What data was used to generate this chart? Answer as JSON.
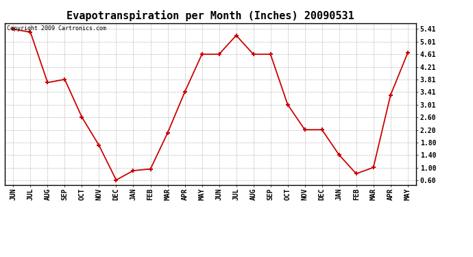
{
  "title": "Evapotranspiration per Month (Inches) 20090531",
  "copyright": "Copyright 2009 Cartronics.com",
  "months": [
    "JUN",
    "JUL",
    "AUG",
    "SEP",
    "OCT",
    "NOV",
    "DEC",
    "JAN",
    "FEB",
    "MAR",
    "APR",
    "MAY",
    "JUN",
    "JUL",
    "AUG",
    "SEP",
    "OCT",
    "NOV",
    "DEC",
    "JAN",
    "FEB",
    "MAR",
    "APR",
    "MAY"
  ],
  "values": [
    5.41,
    5.31,
    3.71,
    3.81,
    2.61,
    1.71,
    0.61,
    0.91,
    0.96,
    2.11,
    3.41,
    4.61,
    4.61,
    5.21,
    4.61,
    4.61,
    3.01,
    2.21,
    2.21,
    1.41,
    0.81,
    1.01,
    3.31,
    4.65
  ],
  "line_color": "#cc0000",
  "marker": "+",
  "marker_size": 5,
  "marker_linewidth": 1.5,
  "line_width": 1.3,
  "yticks": [
    0.6,
    1.0,
    1.4,
    1.8,
    2.2,
    2.6,
    3.01,
    3.41,
    3.81,
    4.21,
    4.61,
    5.01,
    5.41
  ],
  "ytick_labels": [
    "0.60",
    "1.00",
    "1.40",
    "1.80",
    "2.20",
    "2.60",
    "3.01",
    "3.41",
    "3.81",
    "4.21",
    "4.61",
    "5.01",
    "5.41"
  ],
  "ylim": [
    0.45,
    5.6
  ],
  "bg_color": "#ffffff",
  "grid_color": "#bbbbbb",
  "grid_linestyle": "--",
  "title_fontsize": 11,
  "tick_fontsize": 7,
  "copyright_fontsize": 6
}
